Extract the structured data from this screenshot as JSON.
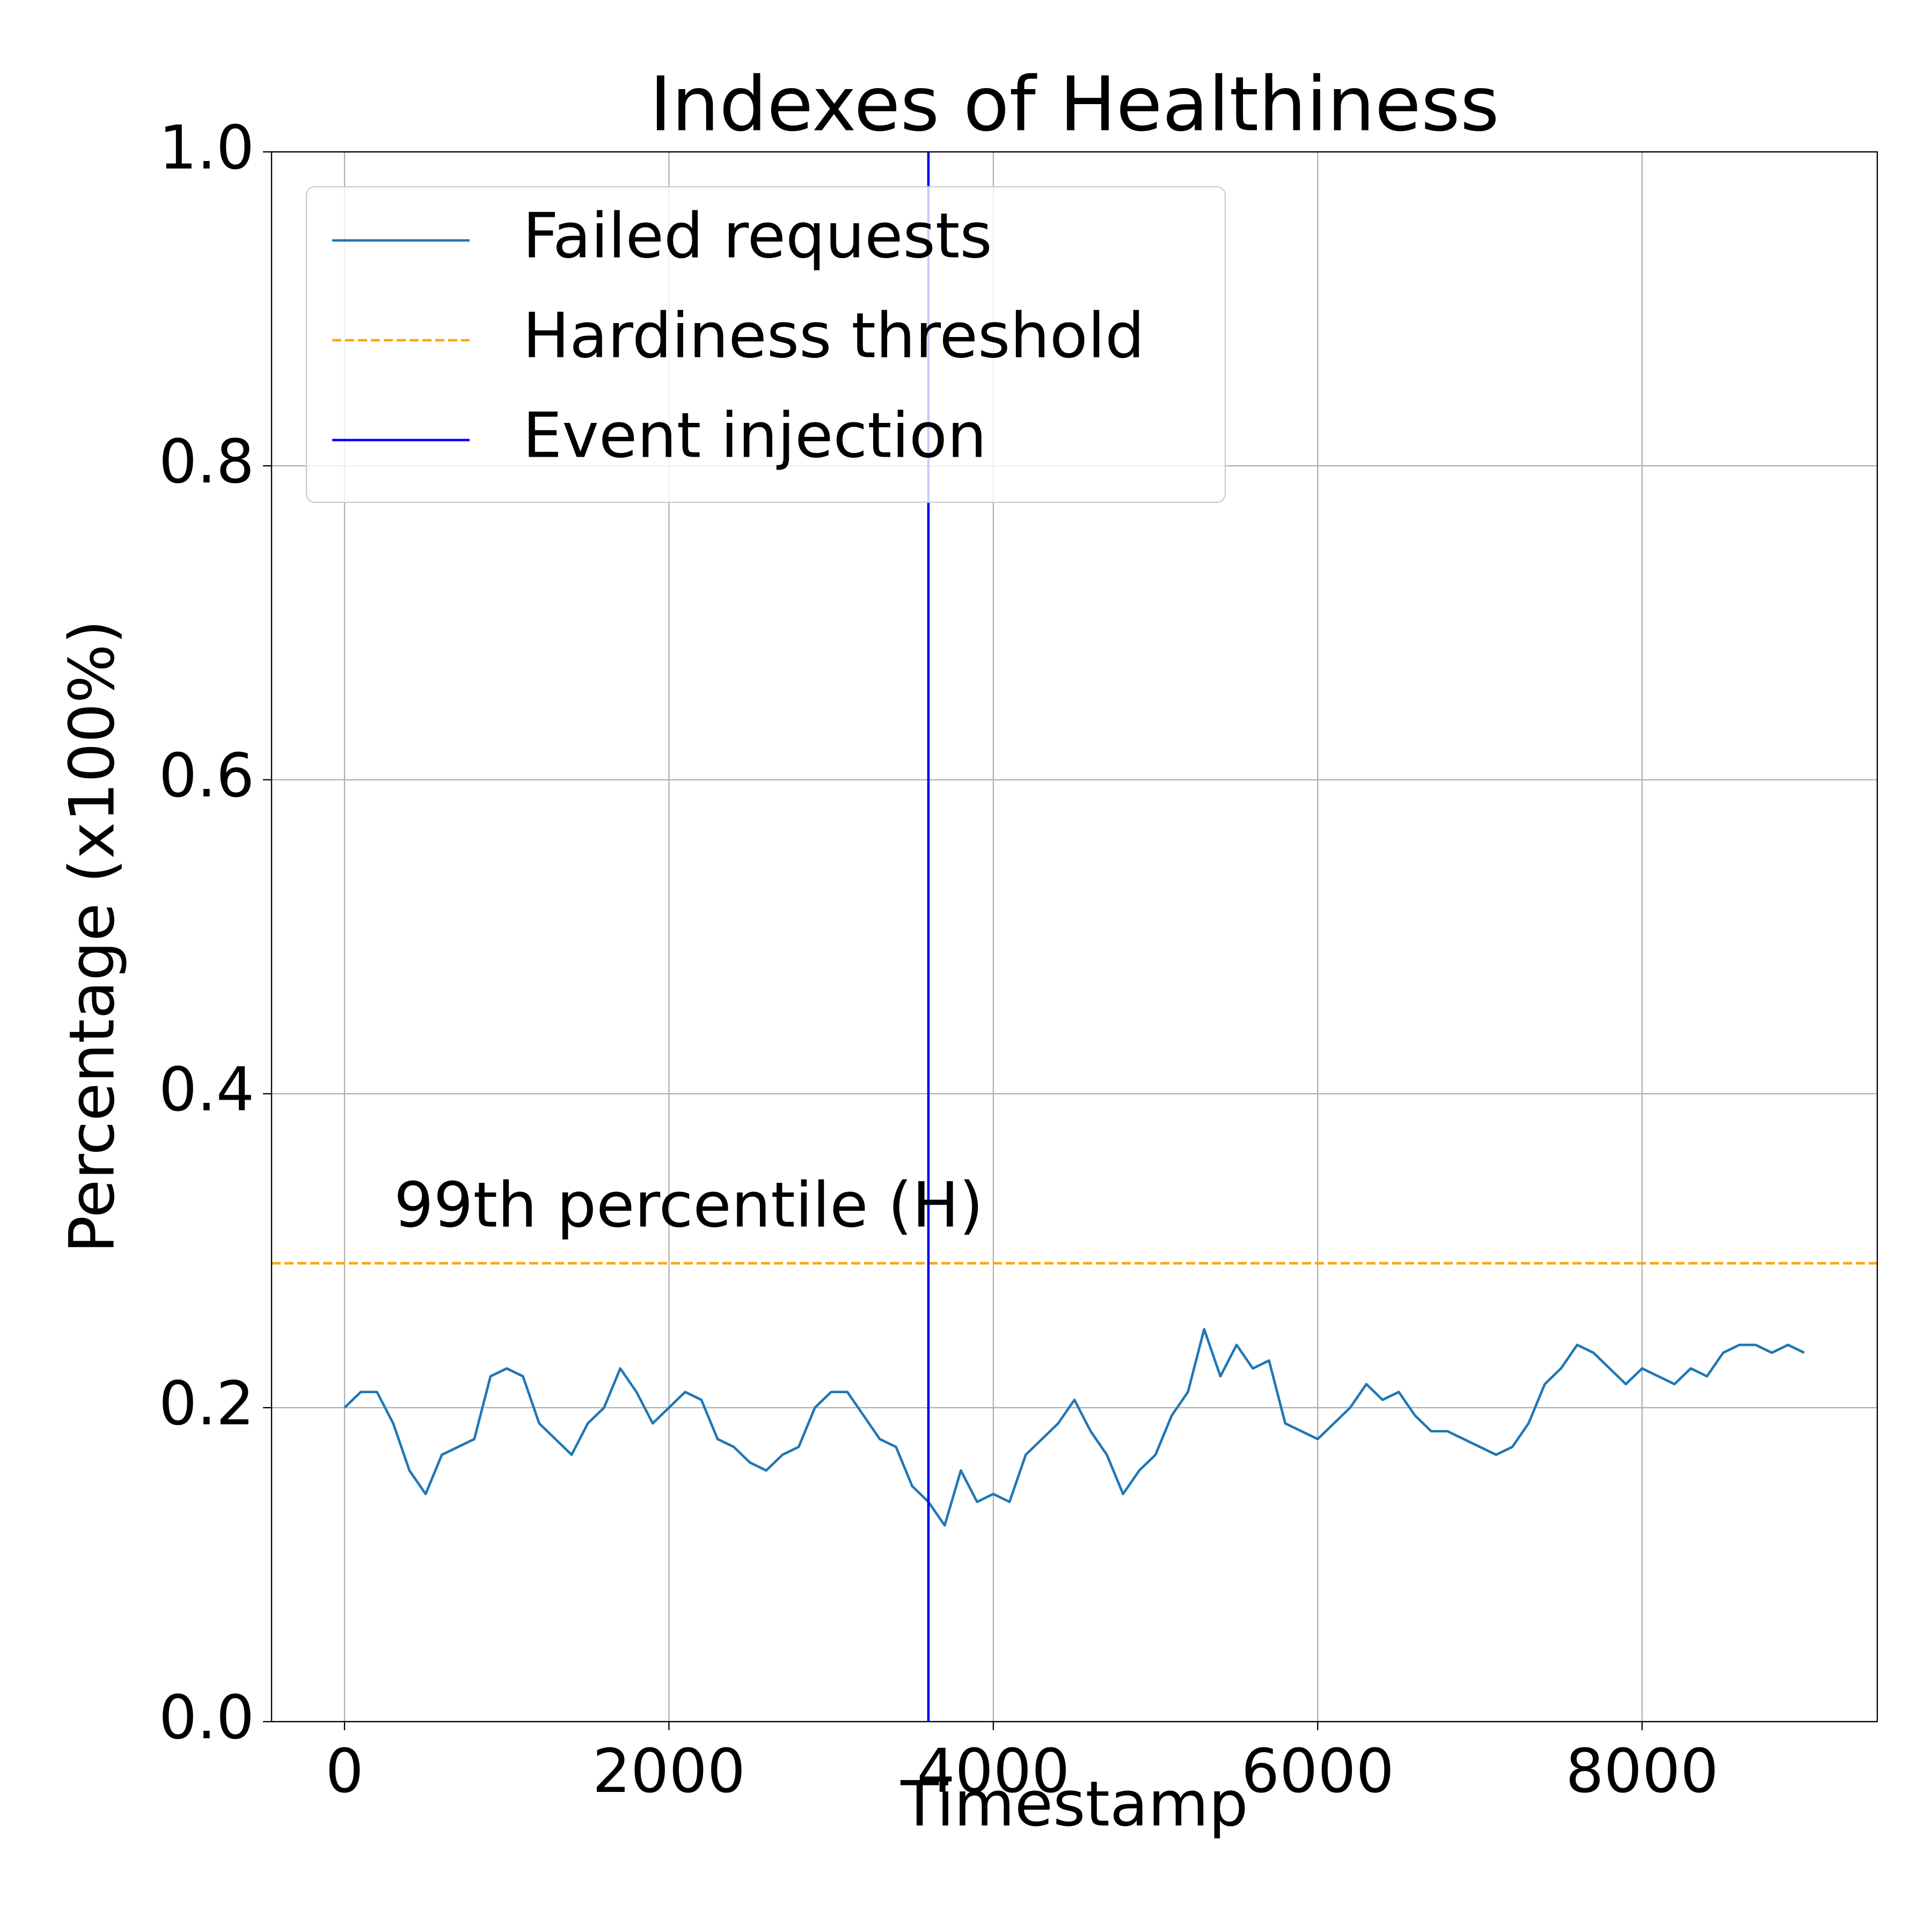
{
  "chart_data": {
    "type": "line",
    "title": "Indexes of Healthiness",
    "xlabel": "Timestamp",
    "ylabel": "Percentage (x100%)",
    "x": [
      0,
      100,
      200,
      300,
      400,
      500,
      600,
      700,
      800,
      900,
      1000,
      1100,
      1200,
      1300,
      1400,
      1500,
      1600,
      1700,
      1800,
      1900,
      2000,
      2100,
      2200,
      2300,
      2400,
      2500,
      2600,
      2700,
      2800,
      2900,
      3000,
      3100,
      3200,
      3300,
      3400,
      3500,
      3600,
      3700,
      3800,
      3900,
      4000,
      4100,
      4200,
      4300,
      4400,
      4500,
      4600,
      4700,
      4800,
      4900,
      5000,
      5100,
      5200,
      5300,
      5400,
      5500,
      5600,
      5700,
      5800,
      5900,
      6000,
      6100,
      6200,
      6300,
      6400,
      6500,
      6600,
      6700,
      6800,
      6900,
      7000,
      7100,
      7200,
      7300,
      7400,
      7500,
      7600,
      7700,
      7800,
      7900,
      8000,
      8100,
      8200,
      8300,
      8400,
      8500,
      8600,
      8700,
      8800,
      8900,
      9000
    ],
    "series": [
      {
        "name": "Failed requests",
        "color": "#1f77b4",
        "values": [
          0.2,
          0.21,
          0.21,
          0.19,
          0.16,
          0.145,
          0.17,
          0.175,
          0.18,
          0.22,
          0.225,
          0.22,
          0.19,
          0.18,
          0.17,
          0.19,
          0.2,
          0.225,
          0.21,
          0.19,
          0.2,
          0.21,
          0.205,
          0.18,
          0.175,
          0.165,
          0.16,
          0.17,
          0.175,
          0.2,
          0.21,
          0.21,
          0.195,
          0.18,
          0.175,
          0.15,
          0.14,
          0.125,
          0.16,
          0.14,
          0.145,
          0.14,
          0.17,
          0.18,
          0.19,
          0.205,
          0.185,
          0.17,
          0.145,
          0.16,
          0.17,
          0.195,
          0.21,
          0.25,
          0.22,
          0.24,
          0.225,
          0.23,
          0.19,
          0.185,
          0.18,
          0.19,
          0.2,
          0.215,
          0.205,
          0.21,
          0.195,
          0.185,
          0.185,
          0.18,
          0.175,
          0.17,
          0.175,
          0.19,
          0.215,
          0.225,
          0.24,
          0.235,
          0.225,
          0.215,
          0.225,
          0.22,
          0.215,
          0.225,
          0.22,
          0.235,
          0.24,
          0.24,
          0.235,
          0.24,
          0.235
        ]
      }
    ],
    "hlines": [
      {
        "name": "Hardiness threshold",
        "y": 0.292,
        "color": "orange",
        "style": "dashed"
      }
    ],
    "vlines": [
      {
        "name": "Event injection",
        "x": 3600,
        "color": "blue"
      }
    ],
    "annotation": {
      "text": "99th percentile (H)",
      "color": "orange"
    },
    "xlim": [
      -450,
      9450
    ],
    "ylim": [
      0,
      1
    ],
    "xticks": [
      0,
      2000,
      4000,
      6000,
      8000
    ],
    "yticks": [
      {
        "value": 0,
        "label": "0.0"
      },
      0.2,
      0.4,
      0.6,
      0.8,
      {
        "value": 1,
        "label": "1.0"
      }
    ],
    "grid": true,
    "legend": "upper left"
  }
}
